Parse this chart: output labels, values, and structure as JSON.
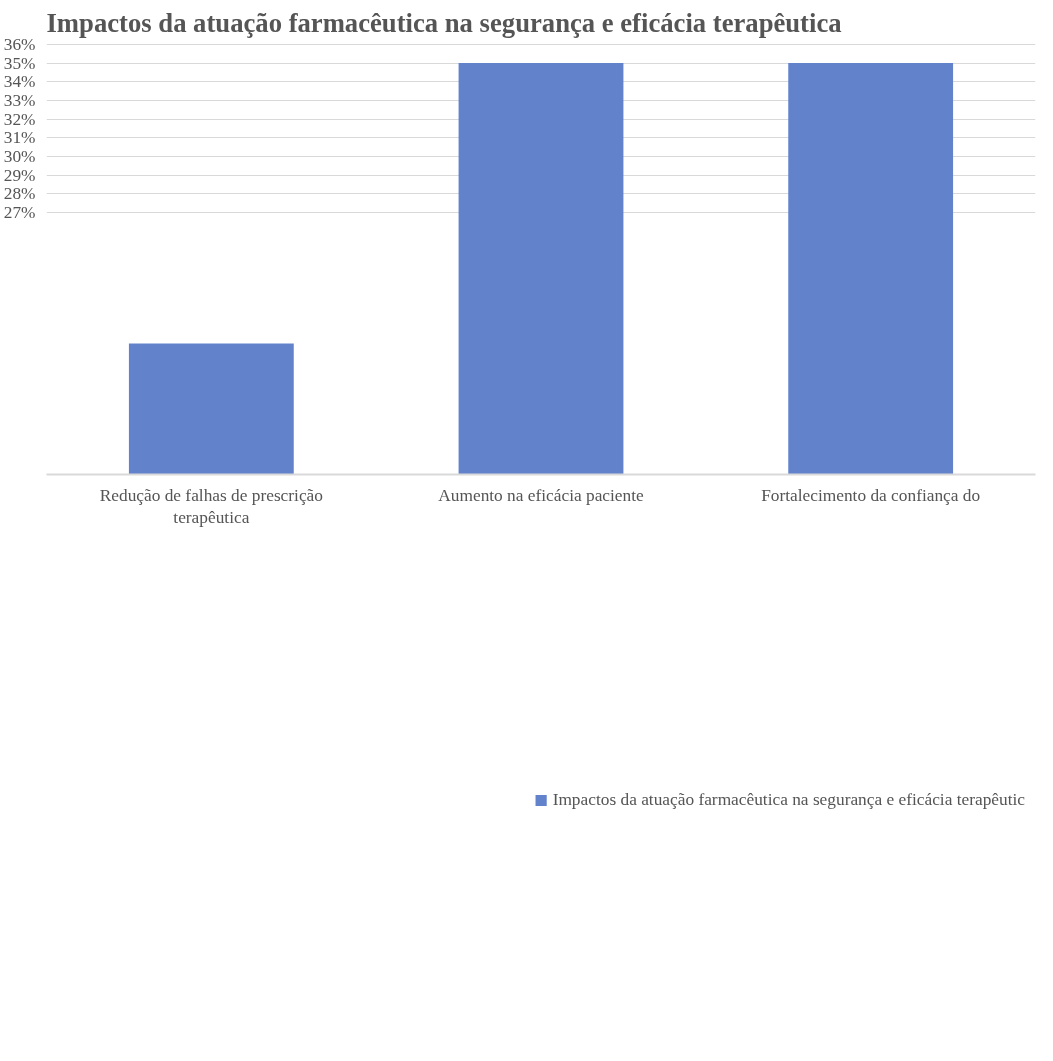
{
  "chart_data": {
    "type": "bar",
    "title": "Impactos da atuação farmacêutica na segurança e eficácia terapêutica",
    "categories": [
      "Redução de falhas de prescrição terapêutica",
      "Aumento na eficácia paciente",
      "Fortalecimento da confiança do"
    ],
    "series": [
      {
        "name": "Impactos da atuação farmacêutica na segurança e eficácia terapêutic",
        "color": "#6283cb",
        "values": [
          20,
          35,
          35
        ]
      }
    ],
    "ylim": [
      13,
      36.1
    ],
    "yticks": [
      {
        "value": 27,
        "label": "27%"
      },
      {
        "value": 28,
        "label": "28%"
      },
      {
        "value": 29,
        "label": "29%"
      },
      {
        "value": 30,
        "label": "30%"
      },
      {
        "value": 31,
        "label": "31%"
      },
      {
        "value": 32,
        "label": "32%"
      },
      {
        "value": 33,
        "label": "33%"
      },
      {
        "value": 34,
        "label": "34%"
      },
      {
        "value": 35,
        "label": "35%"
      },
      {
        "value": 36,
        "label": "36%"
      }
    ],
    "grid": "y",
    "legend": "bottom"
  }
}
